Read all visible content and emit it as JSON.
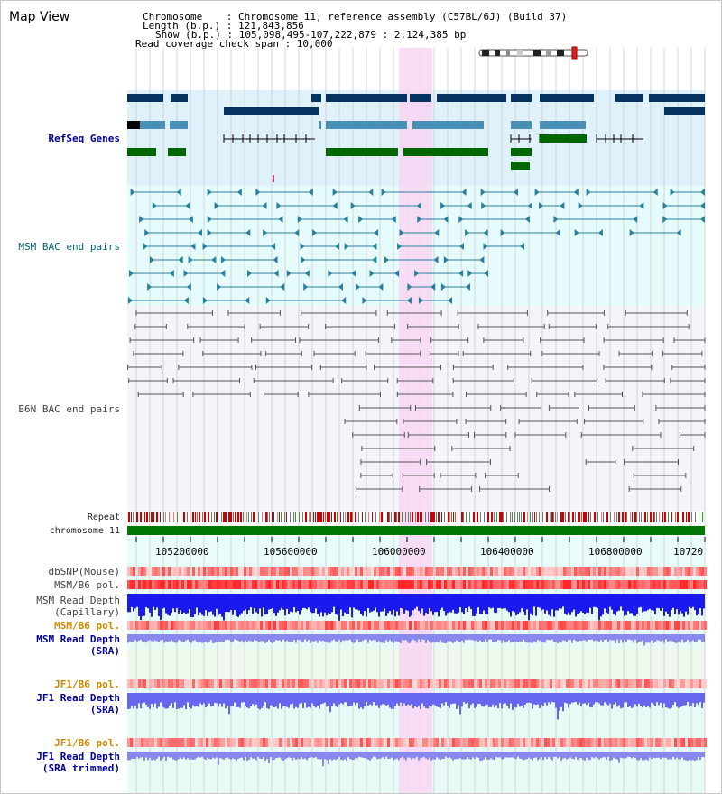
{
  "header": {
    "title": "Map View",
    "info_lines": [
      "Chromosome    : Chromosome 11, reference assembly (C57BL/6J) (Build 37)",
      "Length (b.p.) : 121,843,856",
      "Show (b.p.) : 105,098,495-107,222,879 : 2,124,385 bp",
      "Read coverage check span : 10,000"
    ]
  },
  "labels": {
    "refseq": "RefSeq Genes",
    "msm_bac": "MSM BAC end pairs",
    "b6n_bac": "B6N BAC end pairs",
    "repeat": "Repeat",
    "chromosome": "chromosome 11",
    "dbsnp": "dbSNP(Mouse)",
    "msm_pol": "MSM/B6 pol.",
    "msm_depth_cap_1": "MSM Read Depth",
    "msm_depth_cap_2": "(Capillary)",
    "msm_pol_2": "MSM/B6 pol.",
    "msm_depth_sra_1": "MSM Read Depth",
    "msm_depth_sra_2": "(SRA)",
    "jf1_pol": "JF1/B6 pol.",
    "jf1_depth_1": "JF1 Read Depth",
    "jf1_depth_2": "(SRA)",
    "jf1_pol_2": "JF1/B6 pol.",
    "jf1_trim_1": "JF1 Read Depth",
    "jf1_trim_2": "(SRA trimmed)"
  },
  "axis": {
    "ticks": [
      "105200000",
      "105600000",
      "106000000",
      "106400000",
      "106800000",
      "10720"
    ]
  },
  "colors": {
    "refseq_bg": "#dff1fb",
    "msm_bg": "#e6fbfb",
    "b6n_bg": "#f4f4fb",
    "highlight": "#f8d6f3",
    "gene_dark": "#06335f",
    "gene_mid": "#4a8fb5",
    "gene_green": "#006600",
    "chromosome_bar": "#007700"
  }
}
